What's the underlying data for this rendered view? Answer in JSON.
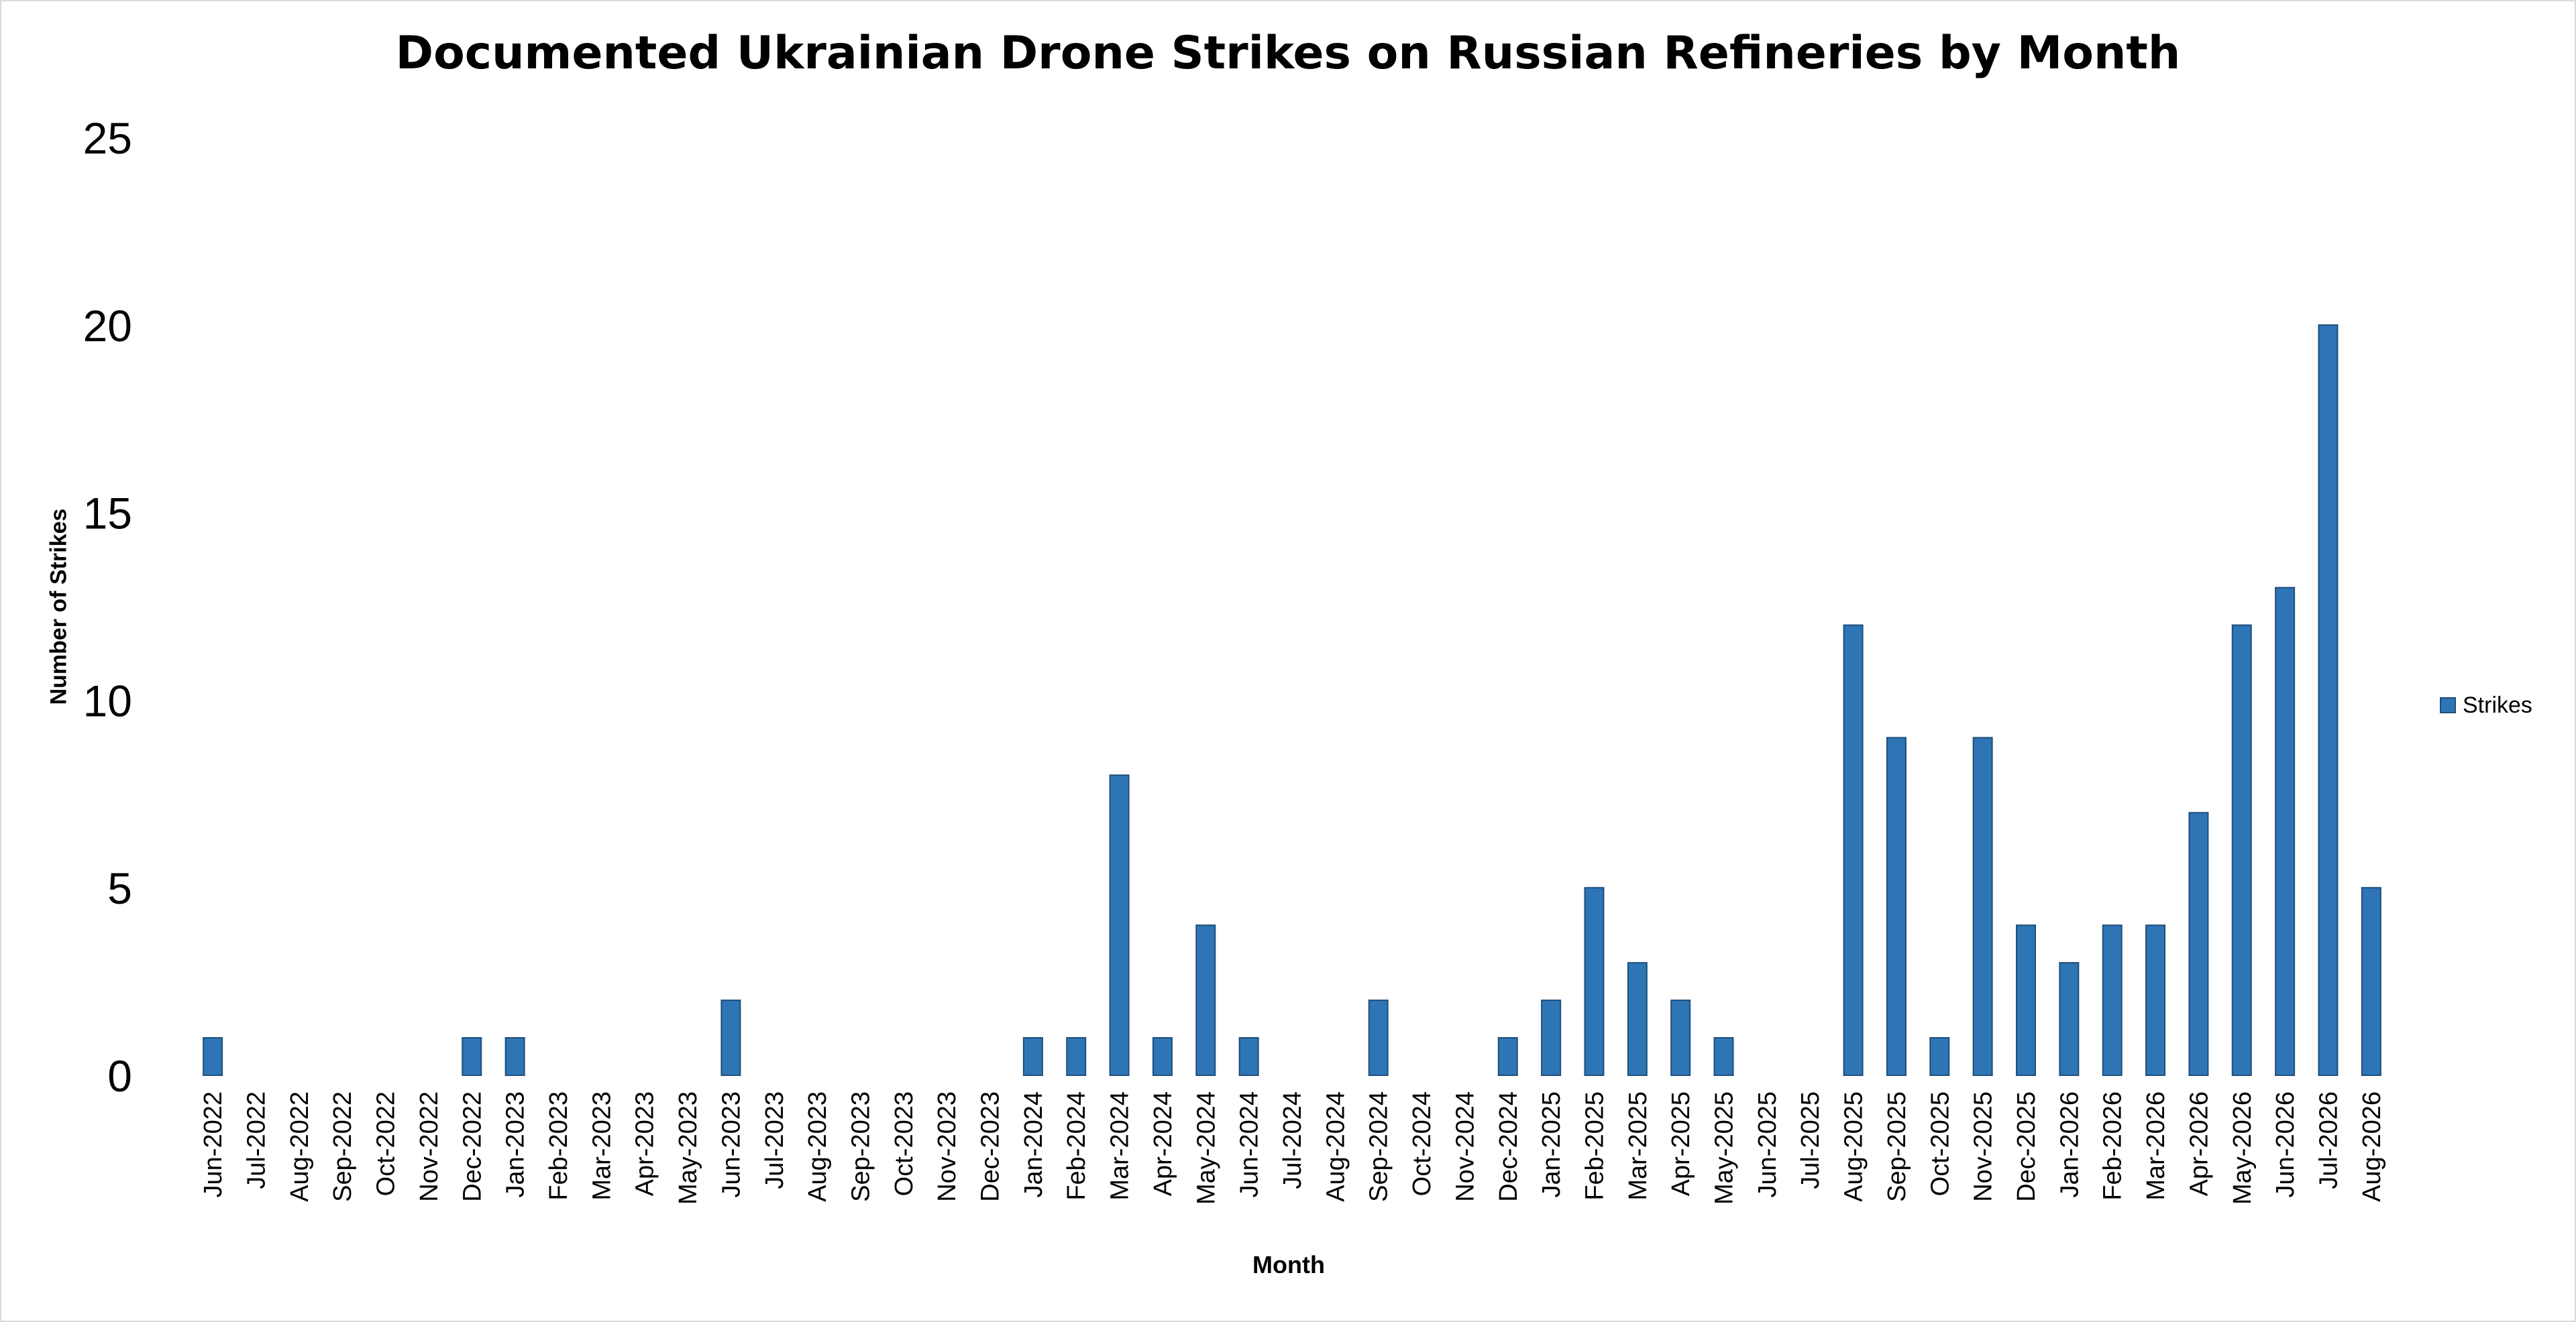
{
  "chart_data": {
    "type": "bar",
    "title": "Documented Ukrainian Drone Strikes on Russian Refineries by Month",
    "xlabel": "Month",
    "ylabel": "Number of Strikes",
    "ylim": [
      0,
      25
    ],
    "yticks": [
      0,
      5,
      10,
      15,
      20,
      25
    ],
    "grid": false,
    "legend": "right",
    "categories": [
      "Jun-2022",
      "Jul-2022",
      "Aug-2022",
      "Sep-2022",
      "Oct-2022",
      "Nov-2022",
      "Dec-2022",
      "Jan-2023",
      "Feb-2023",
      "Mar-2023",
      "Apr-2023",
      "May-2023",
      "Jun-2023",
      "Jul-2023",
      "Aug-2023",
      "Sep-2023",
      "Oct-2023",
      "Nov-2023",
      "Dec-2023",
      "Jan-2024",
      "Feb-2024",
      "Mar-2024",
      "Apr-2024",
      "May-2024",
      "Jun-2024",
      "Jul-2024",
      "Aug-2024",
      "Sep-2024",
      "Oct-2024",
      "Nov-2024",
      "Dec-2024",
      "Jan-2025",
      "Feb-2025",
      "Mar-2025",
      "Apr-2025",
      "May-2025",
      "Jun-2025",
      "Jul-2025",
      "Aug-2025",
      "Sep-2025",
      "Oct-2025",
      "Nov-2025",
      "Dec-2025",
      "Jan-2026",
      "Feb-2026",
      "Mar-2026",
      "Apr-2026",
      "May-2026",
      "Jun-2026",
      "Jul-2026",
      "Aug-2026"
    ],
    "series": [
      {
        "name": "Strikes",
        "color": "#2e75b6",
        "values": [
          1,
          0,
          0,
          0,
          0,
          0,
          1,
          1,
          0,
          0,
          0,
          0,
          2,
          0,
          0,
          0,
          0,
          0,
          0,
          1,
          1,
          8,
          1,
          4,
          1,
          0,
          0,
          2,
          0,
          0,
          1,
          2,
          5,
          3,
          2,
          1,
          0,
          0,
          12,
          9,
          1,
          9,
          4,
          3,
          4,
          4,
          7,
          12,
          13,
          20,
          5
        ]
      }
    ]
  }
}
